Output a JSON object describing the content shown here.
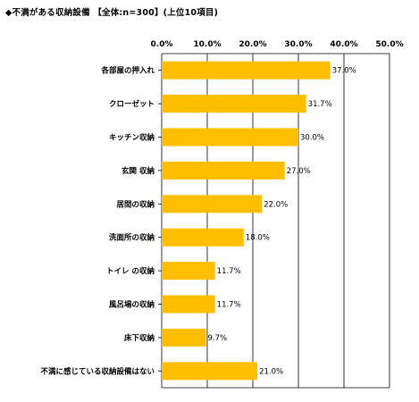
{
  "title": "◆不満がある収納設備 【全体:n=300】(上位10項目)",
  "chart_data": {
    "type": "bar",
    "orientation": "horizontal",
    "title": "◆不満がある収納設備 【全体:n=300】(上位10項目)",
    "xlabel": "",
    "ylabel": "",
    "xlim": [
      0,
      50
    ],
    "ticks": [
      "0.0%",
      "10.0%",
      "20.0%",
      "30.0%",
      "40.0%",
      "50.0%"
    ],
    "categories": [
      "各部屋の押入れ",
      "クローゼット",
      "キッチン収納",
      "玄関 収納",
      "居間の収納",
      "洗面所の収納",
      "トイレ の収納",
      "風呂場の収納",
      "床下収納",
      "不満に感じている収納設備はない"
    ],
    "values": [
      37.0,
      31.7,
      30.0,
      27.0,
      22.0,
      18.0,
      11.7,
      11.7,
      9.7,
      21.0
    ],
    "value_labels": [
      "37.0%",
      "31.7%",
      "30.0%",
      "27.0%",
      "22.0%",
      "18.0%",
      "11.7%",
      "11.7%",
      "9.7%",
      "21.0%"
    ],
    "bar_color": "#FFBE00",
    "grid": true,
    "legend": "none"
  }
}
